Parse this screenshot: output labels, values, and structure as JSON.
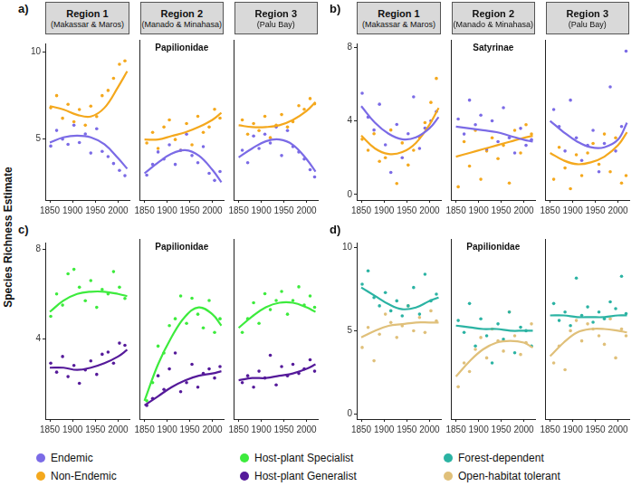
{
  "y_axis_title": "Species Richness Estimate",
  "legend": "bottom",
  "chart_data": [
    {
      "letter": "a)",
      "type": "scatter",
      "annotation": "Papilionidae",
      "grid": false,
      "xlim": [
        1840,
        2025
      ],
      "xticks": [
        1850,
        1900,
        1950,
        2000
      ],
      "ylim": [
        1.5,
        10.5
      ],
      "yticks": [
        5,
        10
      ],
      "regions": [
        {
          "title": "Region 1",
          "subtitle": "(Makassar & Maros)",
          "x": [
            1852,
            1865,
            1878,
            1890,
            1903,
            1915,
            1928,
            1940,
            1953,
            1965,
            1978,
            1990,
            2003,
            2015
          ],
          "trend_x": [
            1850,
            1880,
            1910,
            1940,
            1970,
            2000,
            2020
          ]
        },
        {
          "title": "Region 2",
          "subtitle": "(Manado & Minahasa)",
          "x": [
            1855,
            1868,
            1880,
            1893,
            1905,
            1918,
            1930,
            1943,
            1955,
            1968,
            1980,
            1993,
            2005,
            2017
          ],
          "trend_x": [
            1850,
            1880,
            1910,
            1940,
            1970,
            2000,
            2020
          ]
        },
        {
          "title": "Region 3",
          "subtitle": "(Palu Bay)",
          "x": [
            1858,
            1870,
            1883,
            1895,
            1908,
            1920,
            1933,
            1945,
            1958,
            1970,
            1983,
            1995,
            2008,
            2018
          ],
          "trend_x": [
            1850,
            1880,
            1910,
            1940,
            1970,
            2000,
            2020
          ]
        }
      ],
      "series": [
        {
          "name": "Endemic",
          "color": "#7b6be6",
          "values": [
            [
              4.6,
              5.5,
              5.0,
              4.7,
              5.8,
              4.8,
              5.3,
              4.2,
              5.6,
              4.3,
              4.0,
              3.6,
              3.2,
              2.9
            ],
            [
              2.9,
              3.5,
              4.2,
              3.8,
              4.6,
              3.5,
              4.3,
              5.2,
              4.0,
              3.6,
              4.5,
              3.0,
              2.6,
              3.1
            ],
            [
              4.3,
              3.6,
              5.1,
              4.4,
              5.2,
              4.7,
              5.6,
              4.0,
              5.4,
              4.5,
              4.2,
              3.8,
              3.2,
              2.8
            ]
          ],
          "trend": [
            [
              4.8,
              5.1,
              5.2,
              5.1,
              4.7,
              3.9,
              3.3
            ],
            [
              3.0,
              3.6,
              4.1,
              4.3,
              4.0,
              3.2,
              2.5
            ],
            [
              3.9,
              4.4,
              4.8,
              4.9,
              4.6,
              3.8,
              3.1
            ]
          ]
        },
        {
          "name": "Non-Endemic",
          "color": "#f4a81d",
          "values": [
            [
              6.8,
              7.5,
              6.2,
              7.0,
              6.0,
              6.7,
              5.8,
              6.9,
              6.3,
              7.5,
              7.8,
              8.5,
              9.3,
              9.5
            ],
            [
              4.7,
              5.3,
              4.4,
              5.6,
              6.0,
              4.9,
              4.3,
              5.8,
              4.6,
              6.2,
              5.3,
              5.6,
              6.6,
              6.1
            ],
            [
              6.0,
              5.2,
              5.8,
              5.4,
              6.2,
              5.0,
              5.7,
              6.3,
              5.6,
              5.9,
              6.8,
              6.6,
              7.2,
              6.9
            ]
          ],
          "trend": [
            [
              6.9,
              6.7,
              6.4,
              6.3,
              6.8,
              8.0,
              8.9
            ],
            [
              4.9,
              4.9,
              5.1,
              5.3,
              5.6,
              6.0,
              6.4
            ],
            [
              5.7,
              5.6,
              5.6,
              5.7,
              6.0,
              6.5,
              7.0
            ]
          ]
        }
      ]
    },
    {
      "letter": "b)",
      "type": "scatter",
      "annotation": "Satyrinae",
      "grid": false,
      "xlim": [
        1840,
        2025
      ],
      "xticks": [
        1850,
        1900,
        1950,
        2000
      ],
      "ylim": [
        -0.3,
        8.2
      ],
      "yticks": [
        0,
        4,
        8
      ],
      "regions": [
        {
          "title": "Region 1",
          "subtitle": "(Makassar & Maros)",
          "x": [
            1852,
            1865,
            1878,
            1890,
            1903,
            1915,
            1928,
            1940,
            1953,
            1965,
            1978,
            1990,
            2003,
            2015
          ],
          "trend_x": [
            1850,
            1880,
            1910,
            1940,
            1970,
            2000,
            2020
          ]
        },
        {
          "title": "Region 2",
          "subtitle": "(Manado & Minahasa)",
          "x": [
            1855,
            1868,
            1880,
            1893,
            1905,
            1918,
            1930,
            1943,
            1955,
            1968,
            1980,
            1993,
            2005,
            2017
          ],
          "trend_x": [
            1850,
            1880,
            1910,
            1940,
            1970,
            2000,
            2020
          ]
        },
        {
          "title": "Region 3",
          "subtitle": "(Palu Bay)",
          "x": [
            1858,
            1870,
            1883,
            1895,
            1908,
            1920,
            1933,
            1945,
            1958,
            1970,
            1983,
            1995,
            2008,
            2018
          ],
          "trend_x": [
            1850,
            1880,
            1910,
            1940,
            1970,
            2000,
            2020
          ]
        }
      ],
      "series": [
        {
          "name": "Endemic",
          "color": "#7b6be6",
          "values": [
            [
              5.5,
              4.2,
              3.5,
              4.9,
              2.7,
              1.2,
              3.8,
              2.0,
              3.3,
              5.3,
              2.5,
              3.6,
              4.0,
              4.5
            ],
            [
              4.0,
              3.2,
              5.0,
              3.7,
              4.2,
              2.4,
              3.9,
              2.8,
              4.6,
              3.0,
              2.2,
              3.5,
              2.6,
              2.9
            ],
            [
              4.5,
              3.6,
              2.3,
              5.0,
              3.0,
              1.8,
              2.6,
              3.4,
              1.2,
              2.7,
              5.7,
              2.3,
              3.6,
              7.6
            ]
          ],
          "trend": [
            [
              4.8,
              3.9,
              3.3,
              3.0,
              3.1,
              3.6,
              4.2
            ],
            [
              3.6,
              3.5,
              3.4,
              3.3,
              3.1,
              2.9,
              2.8
            ],
            [
              3.9,
              3.3,
              2.8,
              2.5,
              2.5,
              2.9,
              3.8
            ]
          ]
        },
        {
          "name": "Non-Endemic",
          "color": "#f4a81d",
          "values": [
            [
              3.0,
              2.4,
              3.3,
              1.8,
              2.0,
              3.5,
              0.6,
              2.8,
              1.6,
              2.4,
              3.1,
              3.9,
              5.0,
              6.3
            ],
            [
              0.4,
              2.8,
              1.5,
              3.4,
              0.8,
              2.3,
              3.0,
              1.9,
              2.6,
              0.6,
              3.4,
              2.2,
              3.7,
              3.2
            ],
            [
              0.8,
              2.5,
              1.4,
              0.3,
              2.1,
              1.0,
              2.2,
              2.7,
              1.6,
              3.2,
              1.2,
              3.0,
              0.6,
              1.0
            ]
          ],
          "trend": [
            [
              3.2,
              2.5,
              2.2,
              2.3,
              2.8,
              3.8,
              4.7
            ],
            [
              2.0,
              2.2,
              2.4,
              2.6,
              2.8,
              3.0,
              3.1
            ],
            [
              2.2,
              1.8,
              1.6,
              1.7,
              2.0,
              2.6,
              3.3
            ]
          ]
        }
      ]
    },
    {
      "letter": "c)",
      "type": "scatter",
      "annotation": "Papilionidae",
      "grid": false,
      "xlim": [
        1840,
        2025
      ],
      "xticks": [
        1850,
        1900,
        1950,
        2000
      ],
      "ylim": [
        0.4,
        8.3
      ],
      "yticks": [
        4,
        8
      ],
      "regions": [
        {
          "x": [
            1852,
            1865,
            1878,
            1890,
            1903,
            1915,
            1928,
            1940,
            1953,
            1965,
            1978,
            1990,
            2003,
            2015
          ],
          "trend_x": [
            1850,
            1880,
            1910,
            1940,
            1970,
            2000,
            2020
          ]
        },
        {
          "x": [
            1855,
            1868,
            1880,
            1893,
            1905,
            1918,
            1930,
            1943,
            1955,
            1968,
            1980,
            1993,
            2005,
            2017
          ],
          "trend_x": [
            1850,
            1880,
            1910,
            1940,
            1970,
            2000,
            2020
          ]
        },
        {
          "x": [
            1858,
            1870,
            1883,
            1895,
            1908,
            1920,
            1933,
            1945,
            1958,
            1970,
            1983,
            1995,
            2008,
            2018
          ],
          "trend_x": [
            1850,
            1880,
            1910,
            1940,
            1970,
            2000,
            2020
          ]
        }
      ],
      "series": [
        {
          "name": "Host-plant Specialist",
          "color": "#3deb3d",
          "values": [
            [
              5.0,
              6.0,
              5.5,
              6.9,
              7.1,
              6.3,
              5.7,
              6.6,
              5.4,
              6.2,
              6.0,
              7.0,
              6.3,
              5.8
            ],
            [
              1.2,
              2.0,
              3.6,
              3.3,
              4.5,
              4.8,
              5.8,
              4.6,
              5.7,
              5.0,
              4.4,
              5.6,
              4.2,
              4.8
            ],
            [
              4.2,
              4.8,
              5.5,
              4.6,
              5.9,
              5.2,
              5.6,
              6.0,
              5.0,
              5.6,
              6.2,
              5.4,
              5.8,
              5.3
            ]
          ],
          "trend": [
            [
              5.2,
              5.7,
              6.0,
              6.1,
              6.1,
              6.0,
              5.9
            ],
            [
              1.2,
              2.8,
              4.0,
              4.9,
              5.3,
              5.0,
              4.5
            ],
            [
              4.4,
              4.9,
              5.3,
              5.5,
              5.5,
              5.3,
              5.1
            ]
          ]
        },
        {
          "name": "Host-plant Generalist",
          "color": "#551a9a",
          "values": [
            [
              2.9,
              2.5,
              3.2,
              2.3,
              2.8,
              2.0,
              2.6,
              3.0,
              2.4,
              3.3,
              3.4,
              2.9,
              3.8,
              3.7
            ],
            [
              1.0,
              1.3,
              2.3,
              1.7,
              2.6,
              3.3,
              1.6,
              2.0,
              2.8,
              1.8,
              2.4,
              2.6,
              2.2,
              2.7
            ],
            [
              2.0,
              2.3,
              1.8,
              2.5,
              2.2,
              3.2,
              1.9,
              2.7,
              2.3,
              2.8,
              2.4,
              2.6,
              3.0,
              2.5
            ]
          ],
          "trend": [
            [
              2.7,
              2.7,
              2.6,
              2.7,
              2.9,
              3.2,
              3.5
            ],
            [
              1.0,
              1.4,
              1.8,
              2.1,
              2.3,
              2.4,
              2.5
            ],
            [
              2.1,
              2.2,
              2.2,
              2.3,
              2.4,
              2.6,
              2.8
            ]
          ]
        }
      ]
    },
    {
      "letter": "d)",
      "type": "scatter",
      "annotation": "Papilionidae",
      "grid": false,
      "xlim": [
        1840,
        2025
      ],
      "xticks": [
        1850,
        1900,
        1950,
        2000
      ],
      "ylim": [
        -0.3,
        10.3
      ],
      "yticks": [
        0,
        5,
        10
      ],
      "regions": [
        {
          "x": [
            1852,
            1865,
            1878,
            1890,
            1903,
            1915,
            1928,
            1940,
            1953,
            1965,
            1978,
            1990,
            2003,
            2015
          ],
          "trend_x": [
            1850,
            1880,
            1910,
            1940,
            1970,
            2000,
            2020
          ]
        },
        {
          "x": [
            1855,
            1868,
            1880,
            1893,
            1905,
            1918,
            1930,
            1943,
            1955,
            1968,
            1980,
            1993,
            2005,
            2017
          ],
          "trend_x": [
            1850,
            1880,
            1910,
            1940,
            1970,
            2000,
            2020
          ]
        },
        {
          "x": [
            1858,
            1870,
            1883,
            1895,
            1908,
            1920,
            1933,
            1945,
            1958,
            1970,
            1983,
            1995,
            2008,
            2018
          ],
          "trend_x": [
            1850,
            1880,
            1910,
            1940,
            1970,
            2000,
            2020
          ]
        }
      ],
      "series": [
        {
          "name": "Forest-dependent",
          "color": "#2bb3a3",
          "values": [
            [
              7.8,
              8.6,
              7.0,
              6.5,
              7.3,
              6.2,
              6.8,
              5.9,
              6.5,
              7.6,
              6.0,
              8.4,
              6.8,
              7.2
            ],
            [
              5.5,
              4.8,
              6.5,
              4.0,
              5.6,
              4.6,
              3.0,
              5.3,
              4.4,
              6.0,
              3.6,
              5.1,
              4.9,
              4.0
            ],
            [
              6.5,
              5.5,
              6.0,
              5.2,
              8.0,
              5.8,
              6.3,
              5.4,
              6.0,
              5.6,
              6.6,
              6.2,
              8.1,
              5.9
            ]
          ],
          "trend": [
            [
              7.6,
              7.1,
              6.6,
              6.3,
              6.4,
              6.8,
              7.0
            ],
            [
              5.2,
              5.1,
              5.0,
              5.0,
              4.9,
              4.9,
              4.9
            ],
            [
              5.8,
              5.8,
              5.7,
              5.7,
              5.7,
              5.8,
              5.8
            ]
          ]
        },
        {
          "name": "Open-habitat tolerant",
          "color": "#e0c07a",
          "values": [
            [
              4.0,
              5.2,
              3.2,
              4.8,
              6.0,
              5.5,
              4.6,
              5.3,
              6.5,
              5.0,
              5.8,
              4.9,
              6.2,
              5.6
            ],
            [
              1.6,
              3.0,
              2.5,
              3.8,
              4.5,
              3.3,
              5.0,
              4.3,
              3.7,
              6.0,
              4.6,
              3.5,
              4.2,
              5.3
            ],
            [
              3.0,
              4.0,
              2.6,
              4.9,
              5.5,
              4.3,
              5.3,
              5.0,
              4.6,
              4.1,
              5.6,
              3.3,
              5.0,
              4.6
            ]
          ],
          "trend": [
            [
              4.6,
              5.0,
              5.3,
              5.4,
              5.5,
              5.5,
              5.5
            ],
            [
              2.2,
              3.1,
              3.8,
              4.2,
              4.3,
              4.2,
              3.9
            ],
            [
              3.4,
              4.2,
              4.8,
              5.0,
              5.0,
              4.9,
              4.8
            ]
          ]
        }
      ]
    }
  ]
}
